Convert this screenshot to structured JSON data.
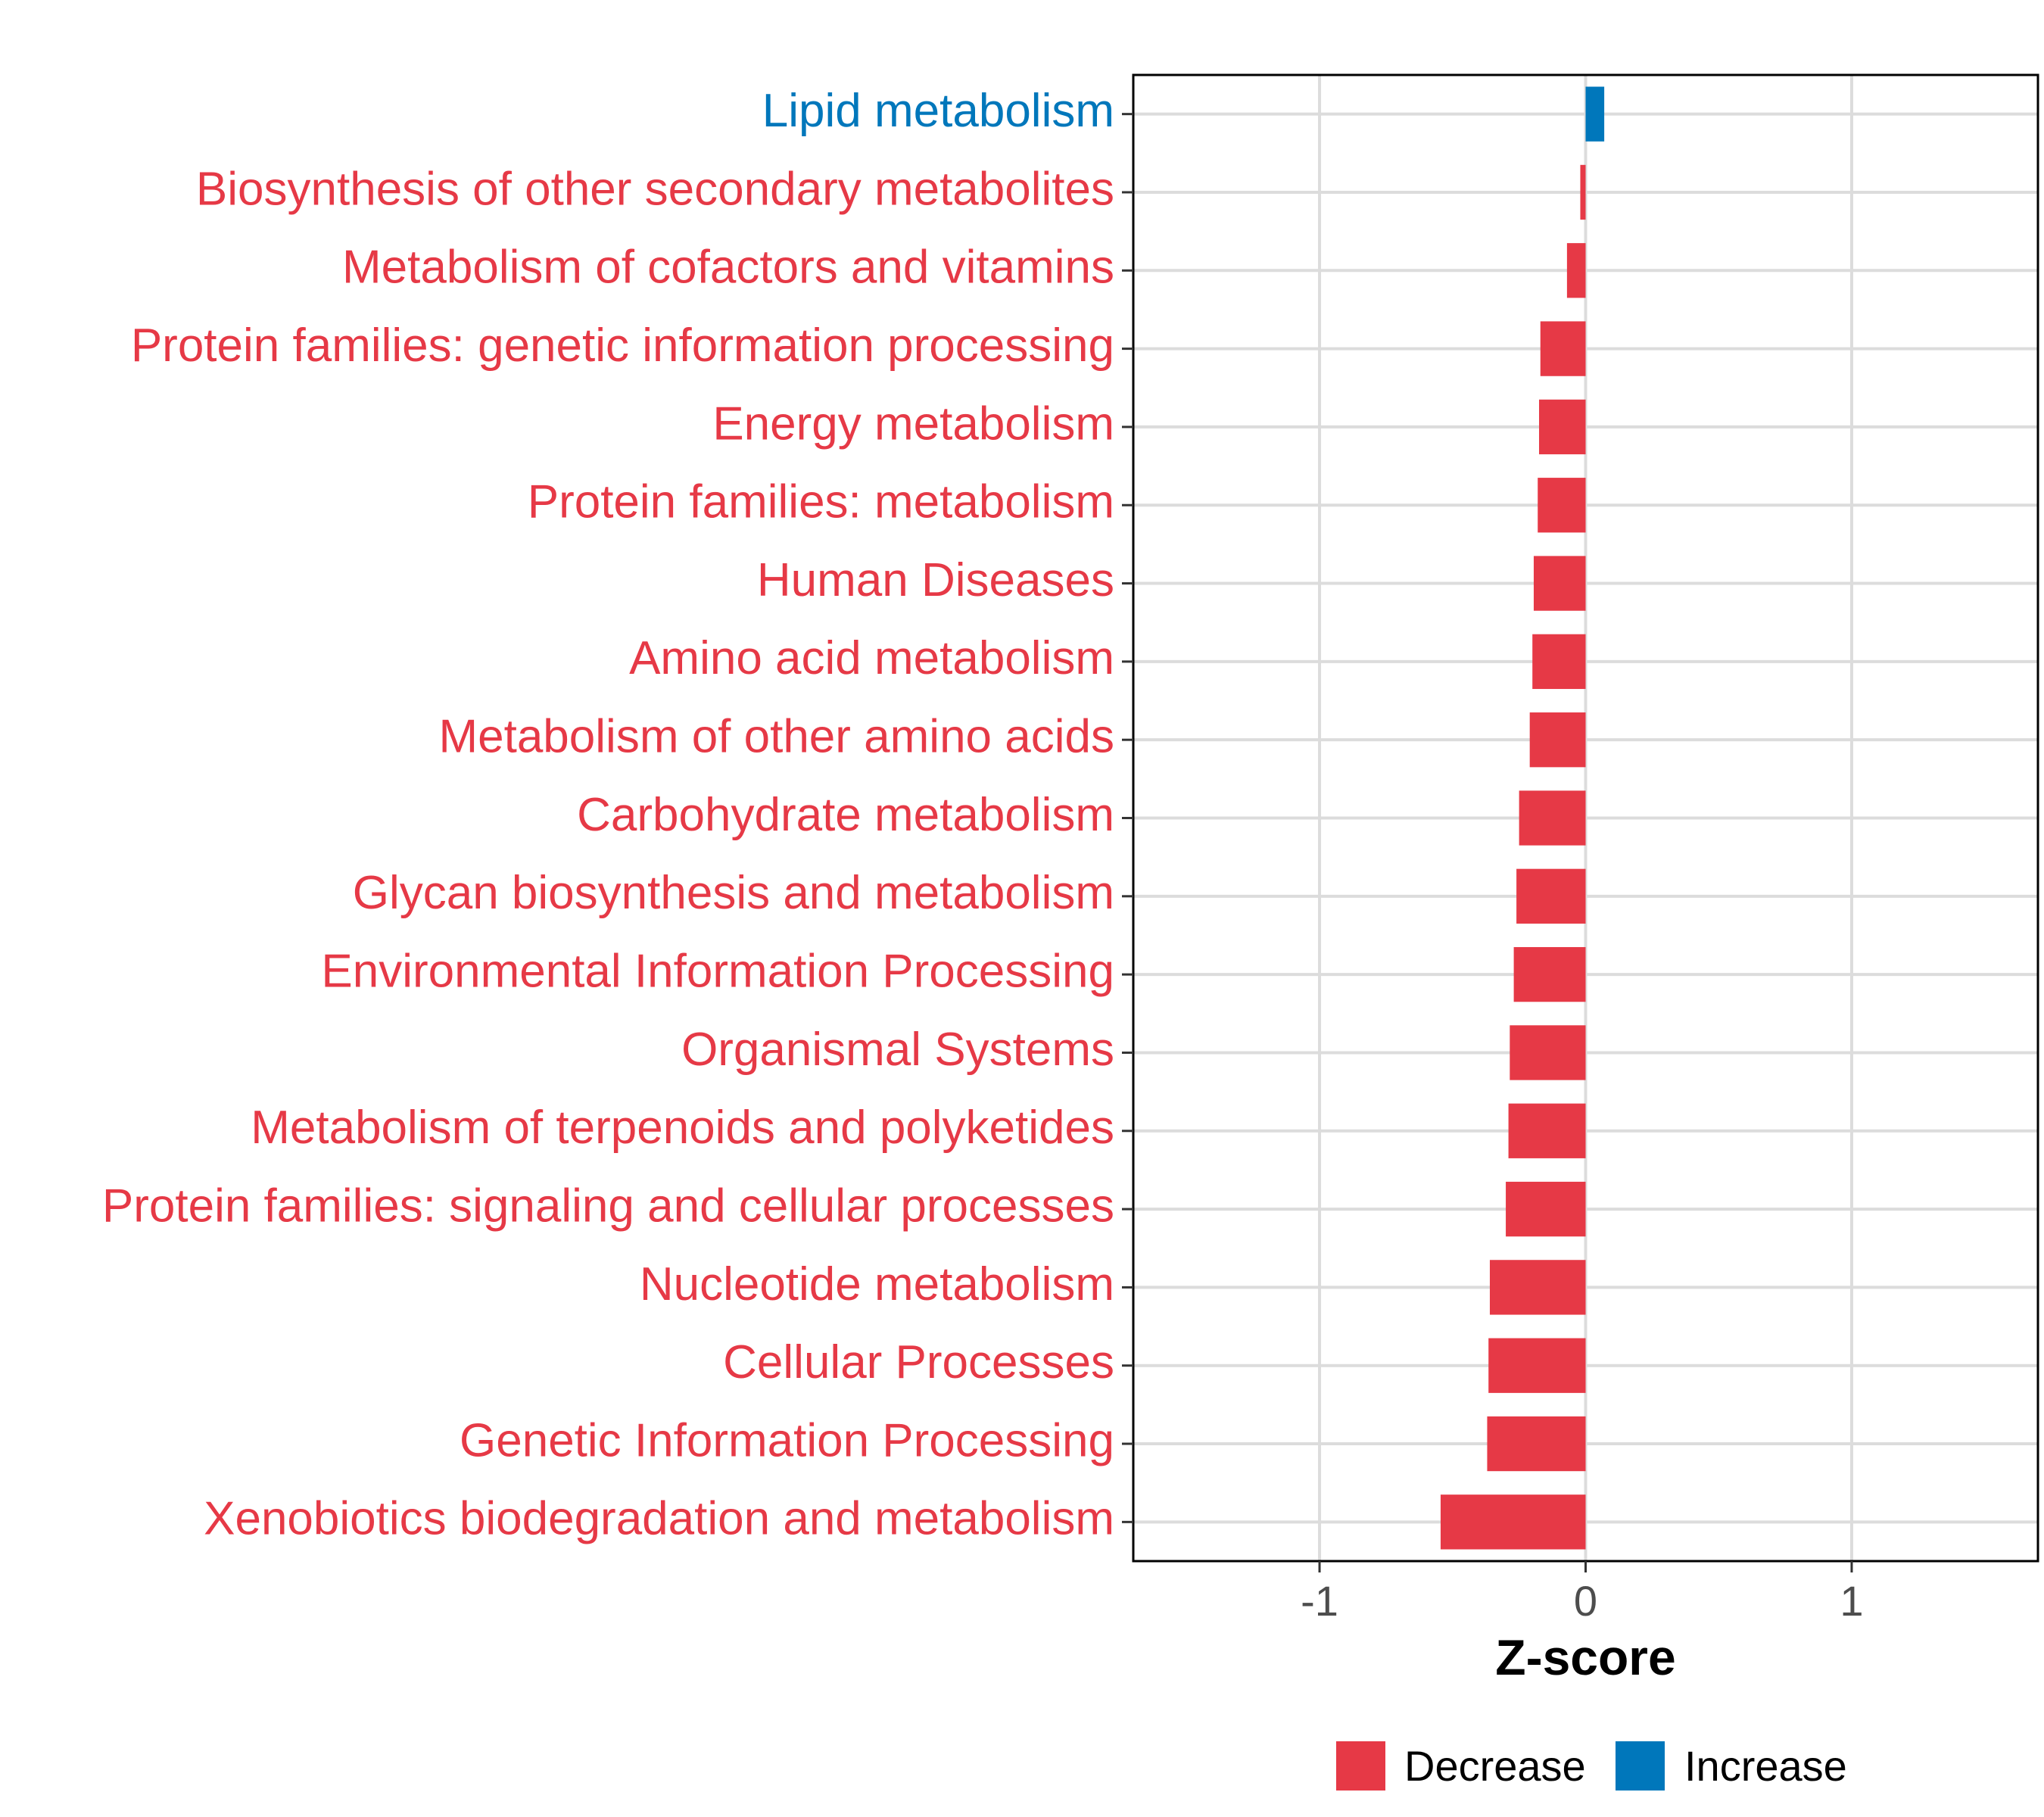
{
  "chart_data": {
    "type": "bar",
    "orientation": "horizontal",
    "xlabel": "Z-score",
    "ylabel": "",
    "xlim": [
      -1.7,
      1.7
    ],
    "xticks": [
      -1,
      0,
      1
    ],
    "xtick_labels": [
      "-1",
      "0",
      "1"
    ],
    "grid": true,
    "legend_position": "bottom",
    "colors": {
      "Decrease": "#E63946",
      "Increase": "#0077BB"
    },
    "legend": [
      "Decrease",
      "Increase"
    ],
    "categories": [
      "Lipid metabolism",
      "Biosynthesis of other secondary metabolites",
      "Metabolism of cofactors and vitamins",
      "Protein families: genetic information processing",
      "Energy metabolism",
      "Protein families: metabolism",
      "Human Diseases",
      "Amino acid metabolism",
      "Metabolism of other amino acids",
      "Carbohydrate metabolism",
      "Glycan biosynthesis and metabolism",
      "Environmental Information Processing",
      "Organismal Systems",
      "Metabolism of terpenoids and polyketides",
      "Protein families: signaling and cellular processes",
      "Nucleotide metabolism",
      "Cellular Processes",
      "Genetic Information Processing",
      "Xenobiotics biodegradation and metabolism"
    ],
    "values": [
      0.07,
      -0.02,
      -0.07,
      -0.17,
      -0.175,
      -0.18,
      -0.195,
      -0.2,
      -0.21,
      -0.25,
      -0.26,
      -0.27,
      -0.285,
      -0.29,
      -0.3,
      -0.36,
      -0.365,
      -0.37,
      -0.545
    ],
    "groups": [
      "Increase",
      "Decrease",
      "Decrease",
      "Decrease",
      "Decrease",
      "Decrease",
      "Decrease",
      "Decrease",
      "Decrease",
      "Decrease",
      "Decrease",
      "Decrease",
      "Decrease",
      "Decrease",
      "Decrease",
      "Decrease",
      "Decrease",
      "Decrease",
      "Decrease"
    ]
  }
}
